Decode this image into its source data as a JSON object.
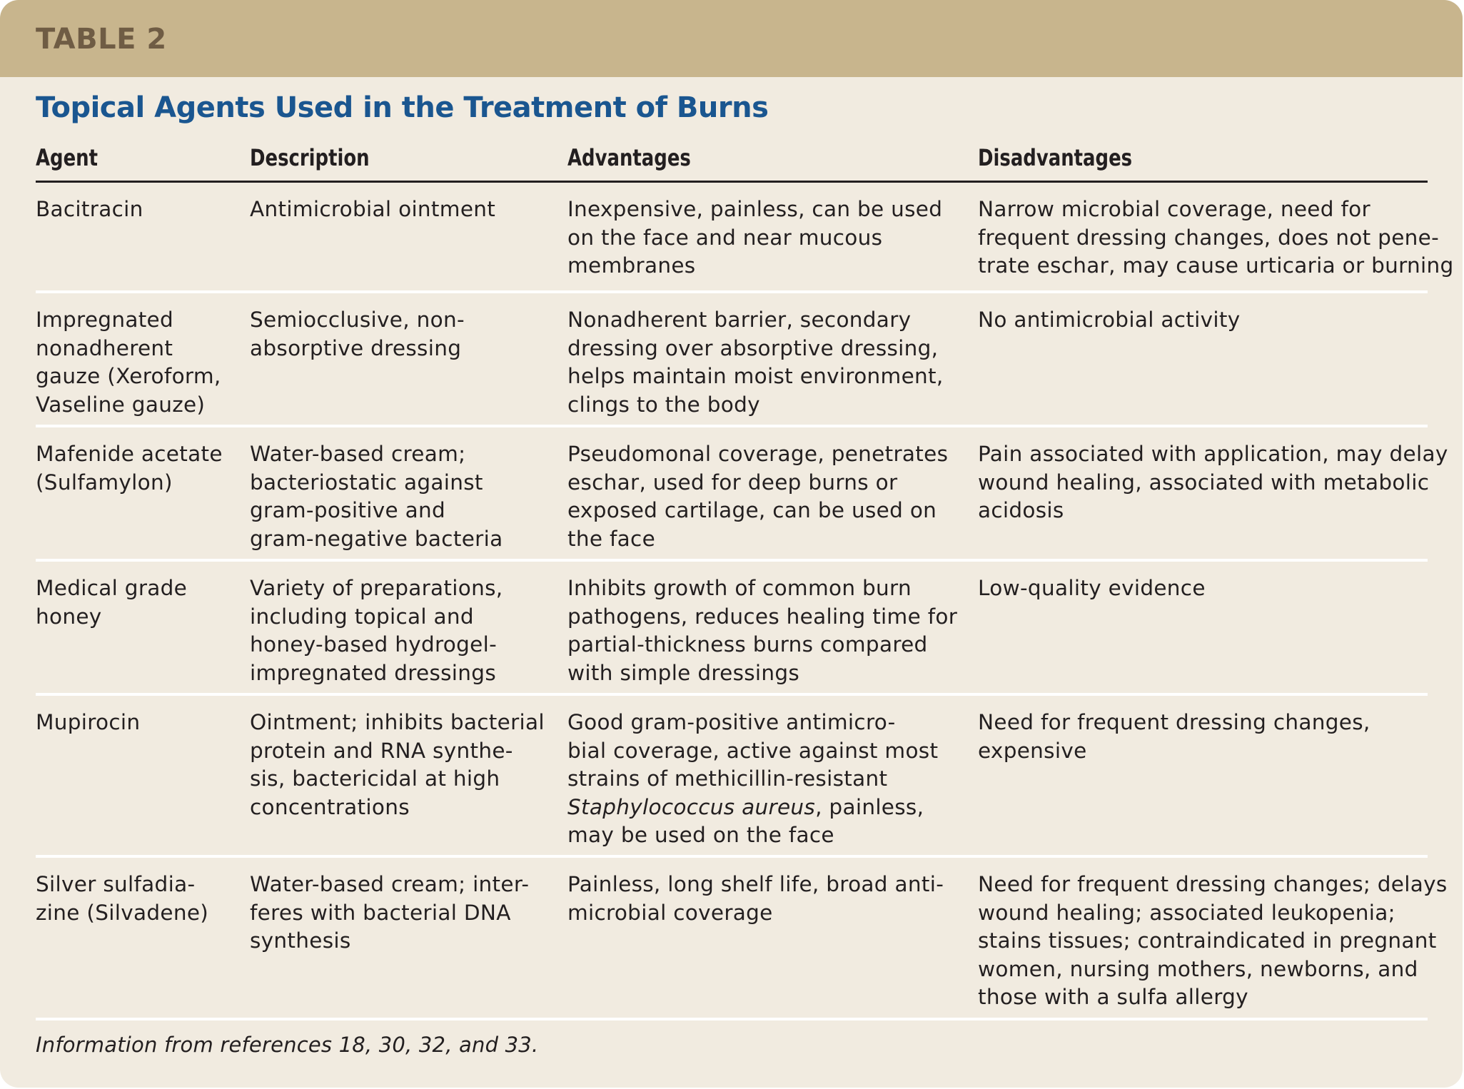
{
  "banner": {
    "label": "TABLE 2"
  },
  "title": "Topical Agents Used in the Treatment of Burns",
  "table": {
    "headers": [
      "Agent",
      "Description",
      "Advantages",
      "Disadvantages"
    ],
    "rows": [
      {
        "agent": [
          "Bacitracin"
        ],
        "description": [
          "Antimicrobial ointment"
        ],
        "advantages": [
          "Inexpensive, painless, can be used",
          "on the face and near mucous",
          "membranes"
        ],
        "disadvantages": [
          "Narrow microbial coverage, need for",
          "frequent dressing changes, does not pene-",
          "trate eschar, may cause urticaria or burning"
        ]
      },
      {
        "agent": [
          "Impregnated",
          "nonadherent",
          "gauze (Xeroform,",
          "Vaseline gauze)"
        ],
        "description": [
          "Semiocclusive, non-",
          "absorptive dressing"
        ],
        "advantages": [
          "Nonadherent barrier, secondary",
          "dressing over absorptive dressing,",
          "helps maintain moist environment,",
          "clings to the body"
        ],
        "disadvantages": [
          "No antimicrobial activity"
        ]
      },
      {
        "agent": [
          "Mafenide acetate",
          "(Sulfamylon)"
        ],
        "description": [
          "Water-based cream;",
          "bacteriostatic against",
          "gram-positive and",
          "gram-negative bacteria"
        ],
        "advantages": [
          "Pseudomonal coverage, penetrates",
          "eschar, used for deep burns or",
          "exposed cartilage, can be used on",
          "the face"
        ],
        "disadvantages": [
          "Pain associated with application, may delay",
          "wound healing, associated with metabolic",
          "acidosis"
        ]
      },
      {
        "agent": [
          "Medical grade",
          "honey"
        ],
        "description": [
          "Variety of preparations,",
          "including topical and",
          "honey-based hydrogel-",
          "impregnated dressings"
        ],
        "advantages": [
          "Inhibits growth of common burn",
          "pathogens, reduces healing time for",
          "partial-thickness burns compared",
          "with simple dressings"
        ],
        "disadvantages": [
          "Low-quality evidence"
        ]
      },
      {
        "agent": [
          "Mupirocin"
        ],
        "description": [
          "Ointment; inhibits bacterial",
          "protein and RNA synthe-",
          "sis, bactericidal at high",
          "concentrations"
        ],
        "advantages": [
          "Good gram-positive antimicro-",
          "bial coverage, active against most",
          "strains of methicillin-resistant",
          "Staphylococcus aureus, painless,",
          "may be used on the face"
        ],
        "disadvantages": [
          "Need for frequent dressing changes,",
          "expensive"
        ]
      },
      {
        "agent": [
          "Silver sulfadia-",
          "zine (Silvadene)"
        ],
        "description": [
          "Water-based cream; inter-",
          "feres with bacterial DNA",
          "synthesis"
        ],
        "advantages": [
          "Painless, long shelf life, broad anti-",
          "microbial coverage"
        ],
        "disadvantages": [
          "Need for frequent dressing changes; delays",
          "wound healing; associated leukopenia;",
          "stains tissues; contraindicated in pregnant",
          "women, nursing mothers, newborns, and",
          "those with a sulfa allergy"
        ]
      }
    ]
  },
  "footnote": "Information from references 18, 30, 32, and 33."
}
